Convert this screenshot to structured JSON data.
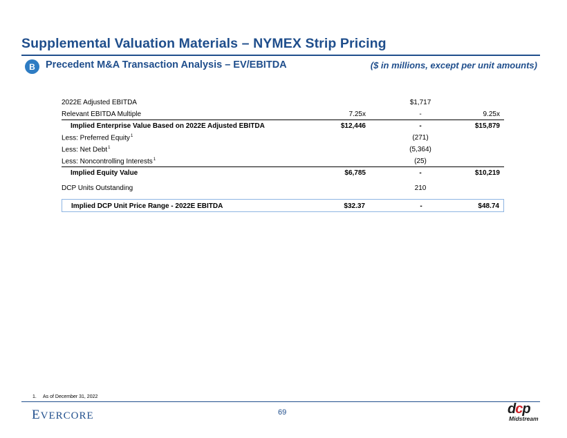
{
  "header": {
    "title": "Supplemental Valuation Materials – NYMEX Strip Pricing",
    "section_badge": "B",
    "section_title": "Precedent M&A Transaction Analysis – EV/EBITDA",
    "units_note": "($ in millions, except per unit amounts)"
  },
  "table": {
    "rows": [
      {
        "label": "2022E Adjusted EBITDA",
        "sup": "",
        "c1": "",
        "c2": "$1,717",
        "c3": ""
      },
      {
        "label": "Relevant EBITDA Multiple",
        "sup": "",
        "c1": "7.25x",
        "c2": "-",
        "c3": "9.25x"
      },
      {
        "label": "Implied Enterprise Value Based on 2022E Adjusted EBITDA",
        "sup": "",
        "c1": "$12,446",
        "c2": "-",
        "c3": "$15,879"
      },
      {
        "label": "Less: Preferred Equity",
        "sup": "1",
        "c1": "",
        "c2": "(271)",
        "c3": ""
      },
      {
        "label": "Less: Net Debt",
        "sup": "1",
        "c1": "",
        "c2": "(5,364)",
        "c3": ""
      },
      {
        "label": "Less: Noncontrolling Interests",
        "sup": "1",
        "c1": "",
        "c2": "(25)",
        "c3": ""
      },
      {
        "label": "Implied Equity Value",
        "sup": "",
        "c1": "$6,785",
        "c2": "-",
        "c3": "$10,219"
      },
      {
        "label": "DCP Units Outstanding",
        "sup": "",
        "c1": "",
        "c2": "210",
        "c3": ""
      },
      {
        "label": "Implied DCP Unit Price Range - 2022E EBITDA",
        "sup": "",
        "c1": "$32.37",
        "c2": "-",
        "c3": "$48.74"
      }
    ]
  },
  "footer": {
    "footnote_number": "1.",
    "footnote_text": "As of December 31, 2022",
    "evercore_first": "E",
    "evercore_rest": "VERCORE",
    "page_number": "69",
    "dcp_mark_1": "d",
    "dcp_mark_2": "c",
    "dcp_mark_3": "p",
    "dcp_sub": "Midstream"
  }
}
